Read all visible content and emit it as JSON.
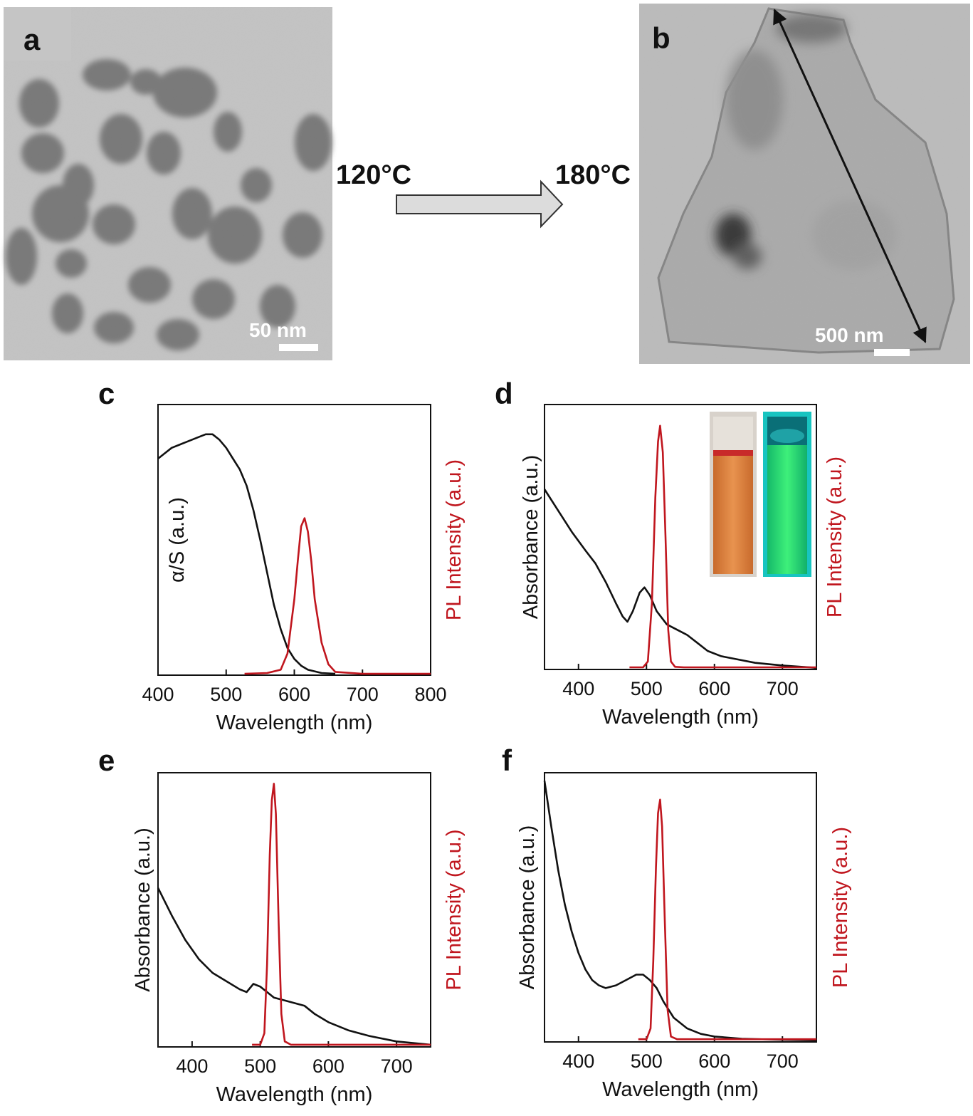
{
  "colors": {
    "absorbance": "#111111",
    "pl": "#c0161e",
    "tem_bg": "#c9c9c9"
  },
  "tem": {
    "a": {
      "letter": "a",
      "scale_label": "50 nm"
    },
    "b": {
      "letter": "b",
      "scale_label": "500 nm"
    }
  },
  "arrow": {
    "left_temp": "120°C",
    "right_temp": "180°C"
  },
  "chart_data": [
    {
      "panel": "c",
      "type": "line",
      "xlabel": "Wavelength (nm)",
      "ylabel": "α/S (a.u.)",
      "y2label": "PL Intensity (a.u.)",
      "xlim": [
        400,
        800
      ],
      "xticks": [
        400,
        500,
        600,
        700,
        800
      ],
      "series": [
        {
          "kind": "absorbance",
          "x": [
            400,
            420,
            440,
            460,
            470,
            480,
            490,
            500,
            510,
            520,
            530,
            540,
            550,
            560,
            570,
            580,
            590,
            600,
            610,
            620,
            640,
            660
          ],
          "y": [
            0.8,
            0.84,
            0.86,
            0.88,
            0.89,
            0.89,
            0.87,
            0.84,
            0.8,
            0.76,
            0.7,
            0.61,
            0.5,
            0.38,
            0.26,
            0.17,
            0.1,
            0.06,
            0.035,
            0.02,
            0.008,
            0.005
          ]
        },
        {
          "kind": "pl",
          "x": [
            527,
            560,
            580,
            590,
            600,
            605,
            610,
            615,
            620,
            625,
            630,
            640,
            650,
            660,
            700,
            750,
            800
          ],
          "y": [
            0.005,
            0.008,
            0.02,
            0.08,
            0.28,
            0.42,
            0.55,
            0.58,
            0.53,
            0.42,
            0.28,
            0.12,
            0.04,
            0.012,
            0.005,
            0.005,
            0.005
          ]
        }
      ]
    },
    {
      "panel": "d",
      "type": "line",
      "xlabel": "Wavelength (nm)",
      "ylabel": "Absorbance (a.u.)",
      "y2label": "PL Intensity (a.u.)",
      "xlim": [
        350,
        750
      ],
      "xticks": [
        400,
        500,
        600,
        700
      ],
      "series": [
        {
          "kind": "absorbance",
          "x": [
            350,
            370,
            390,
            410,
            425,
            440,
            455,
            465,
            472,
            480,
            490,
            497,
            505,
            515,
            530,
            545,
            560,
            575,
            590,
            610,
            630,
            660,
            700,
            750
          ],
          "y": [
            0.68,
            0.6,
            0.52,
            0.45,
            0.4,
            0.33,
            0.25,
            0.2,
            0.18,
            0.22,
            0.29,
            0.31,
            0.28,
            0.22,
            0.17,
            0.15,
            0.13,
            0.1,
            0.07,
            0.05,
            0.04,
            0.025,
            0.015,
            0.006
          ]
        },
        {
          "kind": "pl",
          "x": [
            475,
            495,
            502,
            508,
            513,
            517,
            520,
            524,
            528,
            532,
            536,
            542,
            555,
            600,
            700,
            750
          ],
          "y": [
            0.008,
            0.008,
            0.03,
            0.25,
            0.65,
            0.86,
            0.92,
            0.82,
            0.5,
            0.15,
            0.03,
            0.01,
            0.008,
            0.008,
            0.008,
            0.008
          ]
        }
      ]
    },
    {
      "panel": "e",
      "type": "line",
      "xlabel": "Wavelength (nm)",
      "ylabel": "Absorbance (a.u.)",
      "y2label": "PL Intensity (a.u.)",
      "xlim": [
        350,
        750
      ],
      "xticks": [
        400,
        500,
        600,
        700
      ],
      "series": [
        {
          "kind": "absorbance",
          "x": [
            350,
            370,
            390,
            410,
            430,
            450,
            470,
            480,
            490,
            500,
            510,
            520,
            535,
            550,
            565,
            580,
            600,
            630,
            660,
            700,
            750
          ],
          "y": [
            0.58,
            0.48,
            0.39,
            0.32,
            0.27,
            0.24,
            0.21,
            0.2,
            0.23,
            0.22,
            0.2,
            0.18,
            0.17,
            0.16,
            0.15,
            0.12,
            0.09,
            0.06,
            0.04,
            0.02,
            0.008
          ]
        },
        {
          "kind": "pl",
          "x": [
            488,
            500,
            506,
            510,
            514,
            517,
            520,
            523,
            527,
            531,
            536,
            545,
            600,
            700,
            750
          ],
          "y": [
            0.008,
            0.008,
            0.05,
            0.3,
            0.7,
            0.9,
            0.96,
            0.85,
            0.45,
            0.12,
            0.02,
            0.008,
            0.008,
            0.008,
            0.008
          ]
        }
      ]
    },
    {
      "panel": "f",
      "type": "line",
      "xlabel": "Wavelength (nm)",
      "ylabel": "Absorbance (a.u.)",
      "y2label": "PL Intensity (a.u.)",
      "xlim": [
        350,
        750
      ],
      "xticks": [
        400,
        500,
        600,
        700
      ],
      "series": [
        {
          "kind": "absorbance",
          "x": [
            350,
            360,
            370,
            380,
            390,
            400,
            410,
            420,
            430,
            440,
            455,
            470,
            485,
            495,
            505,
            515,
            525,
            540,
            560,
            580,
            600,
            640,
            700,
            750
          ],
          "y": [
            0.97,
            0.8,
            0.64,
            0.51,
            0.41,
            0.33,
            0.27,
            0.23,
            0.21,
            0.2,
            0.21,
            0.23,
            0.25,
            0.25,
            0.23,
            0.2,
            0.15,
            0.09,
            0.05,
            0.03,
            0.02,
            0.012,
            0.008,
            0.006
          ]
        },
        {
          "kind": "pl",
          "x": [
            488,
            500,
            506,
            510,
            514,
            517,
            520,
            523,
            527,
            531,
            536,
            545,
            600,
            700,
            750
          ],
          "y": [
            0.01,
            0.01,
            0.05,
            0.3,
            0.65,
            0.85,
            0.9,
            0.8,
            0.45,
            0.12,
            0.02,
            0.01,
            0.01,
            0.01,
            0.01
          ]
        }
      ]
    }
  ]
}
